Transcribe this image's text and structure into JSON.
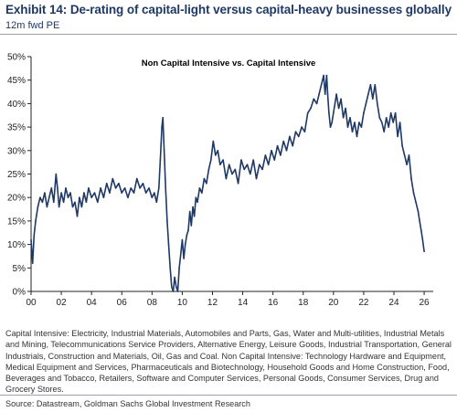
{
  "header": {
    "title": "Exhibit 14: De-rating of capital-light versus capital-heavy businesses globally",
    "subtitle": "12m fwd PE"
  },
  "chart_data": {
    "type": "line",
    "title": "Non Capital Intensive vs. Capital Intensive",
    "xlabel": "",
    "ylabel": "",
    "xlim": [
      2000,
      2026.6
    ],
    "ylim": [
      0,
      50
    ],
    "x_ticks": [
      2000,
      2002,
      2004,
      2006,
      2008,
      2010,
      2012,
      2014,
      2016,
      2018,
      2020,
      2022,
      2024,
      2026
    ],
    "x_tick_labels": [
      "00",
      "02",
      "04",
      "06",
      "08",
      "10",
      "12",
      "14",
      "16",
      "18",
      "20",
      "22",
      "24",
      "26"
    ],
    "y_ticks": [
      0,
      5,
      10,
      15,
      20,
      25,
      30,
      35,
      40,
      45,
      50
    ],
    "y_tick_labels": [
      "0%",
      "5%",
      "10%",
      "15%",
      "20%",
      "25%",
      "30%",
      "35%",
      "40%",
      "45%",
      "50%"
    ],
    "grid": false,
    "legend": false,
    "line_color": "#1f3864",
    "series": [
      {
        "x": [
          2000.0,
          2000.1,
          2000.2,
          2000.3,
          2000.45,
          2000.6,
          2000.75,
          2000.9,
          2001.05,
          2001.2,
          2001.35,
          2001.5,
          2001.65,
          2001.75,
          2001.85,
          2002.0,
          2002.15,
          2002.3,
          2002.45,
          2002.6,
          2002.75,
          2002.9,
          2003.05,
          2003.2,
          2003.35,
          2003.5,
          2003.65,
          2003.8,
          2004.0,
          2004.2,
          2004.4,
          2004.6,
          2004.8,
          2005.0,
          2005.2,
          2005.4,
          2005.6,
          2005.8,
          2006.0,
          2006.2,
          2006.4,
          2006.6,
          2006.8,
          2007.0,
          2007.2,
          2007.4,
          2007.6,
          2007.8,
          2008.0,
          2008.15,
          2008.3,
          2008.45,
          2008.55,
          2008.65,
          2008.72,
          2008.8,
          2008.9,
          2009.0,
          2009.1,
          2009.2,
          2009.3,
          2009.4,
          2009.5,
          2009.6,
          2009.7,
          2009.8,
          2009.9,
          2010.0,
          2010.1,
          2010.2,
          2010.3,
          2010.4,
          2010.5,
          2010.6,
          2010.7,
          2010.8,
          2010.9,
          2011.0,
          2011.15,
          2011.3,
          2011.45,
          2011.6,
          2011.75,
          2011.9,
          2012.05,
          2012.2,
          2012.35,
          2012.5,
          2012.7,
          2012.9,
          2013.1,
          2013.3,
          2013.5,
          2013.7,
          2013.9,
          2014.1,
          2014.3,
          2014.5,
          2014.7,
          2014.9,
          2015.1,
          2015.3,
          2015.5,
          2015.7,
          2015.9,
          2016.1,
          2016.3,
          2016.5,
          2016.7,
          2016.9,
          2017.1,
          2017.3,
          2017.5,
          2017.7,
          2017.9,
          2018.1,
          2018.3,
          2018.5,
          2018.7,
          2018.9,
          2019.05,
          2019.2,
          2019.35,
          2019.45,
          2019.55,
          2019.62,
          2019.7,
          2019.8,
          2019.9,
          2020.0,
          2020.1,
          2020.2,
          2020.35,
          2020.5,
          2020.65,
          2020.8,
          2020.95,
          2021.1,
          2021.25,
          2021.4,
          2021.55,
          2021.7,
          2021.85,
          2022.0,
          2022.15,
          2022.3,
          2022.45,
          2022.6,
          2022.75,
          2022.9,
          2023.05,
          2023.2,
          2023.35,
          2023.5,
          2023.65,
          2023.8,
          2023.95,
          2024.1,
          2024.25,
          2024.4,
          2024.55,
          2024.7,
          2024.85,
          2025.0,
          2025.15,
          2025.3,
          2025.45,
          2025.6,
          2025.7,
          2025.8,
          2025.9,
          2026.0
        ],
        "values": [
          11,
          6,
          12,
          15,
          18,
          20,
          19,
          21,
          18,
          20,
          22,
          19,
          25,
          22,
          18,
          21,
          19,
          22,
          20,
          21,
          18,
          19,
          16,
          20,
          18,
          21,
          19,
          22,
          20,
          21,
          19,
          22,
          20,
          23,
          21,
          24,
          22,
          23,
          21,
          22,
          20,
          22,
          21,
          24,
          22,
          23,
          21,
          22,
          20,
          21,
          19,
          22,
          28,
          35,
          37,
          30,
          22,
          15,
          10,
          5,
          1,
          0,
          3,
          1,
          0,
          5,
          8,
          11,
          7,
          10,
          12,
          13,
          17,
          14,
          18,
          16,
          20,
          19,
          22,
          21,
          24,
          23,
          26,
          28,
          32,
          29,
          30,
          27,
          28,
          24,
          27,
          25,
          26,
          23,
          28,
          26,
          27,
          25,
          28,
          24,
          27,
          26,
          29,
          27,
          30,
          28,
          31,
          29,
          32,
          30,
          33,
          31,
          34,
          33,
          35,
          34,
          38,
          39,
          41,
          40,
          42,
          44,
          46,
          42,
          46,
          42,
          38,
          35,
          36,
          38,
          40,
          42,
          39,
          41,
          37,
          39,
          35,
          37,
          34,
          36,
          33,
          36,
          35,
          38,
          40,
          42,
          44,
          41,
          44,
          40,
          37,
          36,
          34,
          37,
          35,
          38,
          36,
          38,
          33,
          36,
          31,
          29,
          27,
          29,
          24,
          21,
          19,
          17,
          15,
          13,
          11,
          8.5
        ]
      }
    ]
  },
  "footnote": "Capital Intensive: Electricity, Industrial Materials, Automobiles and Parts, Gas, Water and Multi-utilities, Industrial Metals and Mining, Telecommunications Service Providers, Alternative Energy, Leisure Goods, Industrial Transportation, General Industrials, Construction and Materials, Oil, Gas and Coal. Non Capital Intensive: Technology Hardware and Equipment, Medical Equipment and Services, Pharmaceuticals and Biotechnology, Household Goods and Home Construction, Food, Beverages and Tobacco, Retailers, Software and Computer Services, Personal Goods, Consumer Services, Drug and Grocery Stores.",
  "source": "Source: Datastream, Goldman Sachs Global Investment Research"
}
